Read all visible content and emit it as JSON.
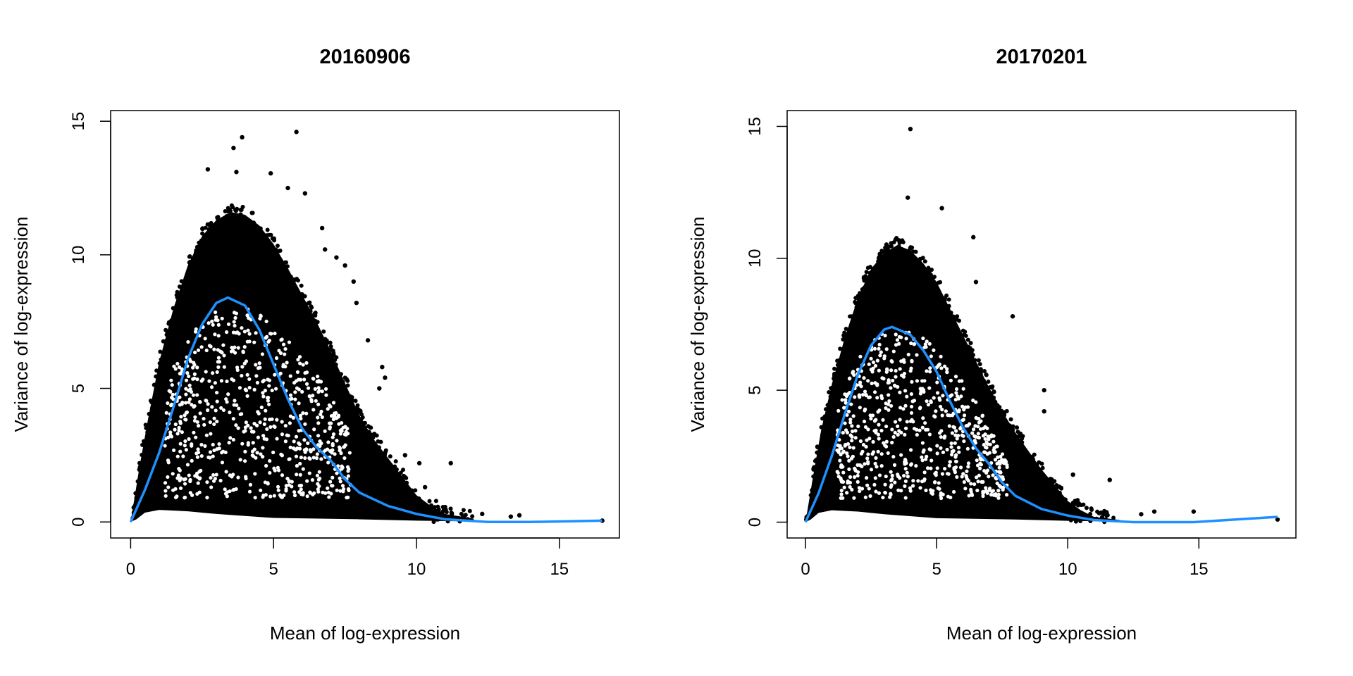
{
  "chart_data": [
    {
      "type": "scatter",
      "title": "20160906",
      "xlabel": "Mean of log-expression",
      "ylabel": "Variance of log-expression",
      "xlim": [
        -0.7,
        17.1
      ],
      "ylim": [
        -0.6,
        15.4
      ],
      "xticks": [
        0,
        5,
        10,
        15
      ],
      "yticks": [
        0,
        5,
        10,
        15
      ],
      "grid": false,
      "point_color": "#000000",
      "trend_color": "#1e90ff",
      "trend": [
        [
          0,
          0
        ],
        [
          0.5,
          1.2
        ],
        [
          1,
          2.6
        ],
        [
          1.5,
          4.3
        ],
        [
          2,
          6.1
        ],
        [
          2.5,
          7.4
        ],
        [
          3,
          8.2
        ],
        [
          3.4,
          8.4
        ],
        [
          4,
          8.1
        ],
        [
          4.5,
          7.2
        ],
        [
          5,
          5.9
        ],
        [
          5.5,
          4.6
        ],
        [
          6,
          3.5
        ],
        [
          6.5,
          2.8
        ],
        [
          7,
          2.3
        ],
        [
          7.5,
          1.6
        ],
        [
          8,
          1.1
        ],
        [
          9,
          0.6
        ],
        [
          10,
          0.3
        ],
        [
          11,
          0.1
        ],
        [
          12.5,
          0
        ],
        [
          14,
          0
        ],
        [
          16.5,
          0.05
        ]
      ],
      "dense_upper": [
        [
          0,
          0
        ],
        [
          0.3,
          2
        ],
        [
          0.6,
          3.8
        ],
        [
          1,
          6
        ],
        [
          1.5,
          8
        ],
        [
          2,
          9.6
        ],
        [
          2.5,
          10.7
        ],
        [
          3,
          11.3
        ],
        [
          3.5,
          11.6
        ],
        [
          4,
          11.5
        ],
        [
          4.5,
          11.1
        ],
        [
          5,
          10.4
        ],
        [
          5.5,
          9.5
        ],
        [
          6,
          8.5
        ],
        [
          6.5,
          7.5
        ],
        [
          7,
          6.4
        ],
        [
          7.5,
          5.2
        ],
        [
          8,
          4
        ],
        [
          8.5,
          3.1
        ],
        [
          9,
          2.4
        ],
        [
          9.5,
          1.7
        ],
        [
          10,
          1
        ],
        [
          10.5,
          0.6
        ],
        [
          11,
          0.3
        ],
        [
          12,
          0.12
        ]
      ],
      "dense_lower": [
        [
          12,
          0.02
        ],
        [
          10,
          0.05
        ],
        [
          8,
          0.1
        ],
        [
          5,
          0.15
        ],
        [
          3,
          0.3
        ],
        [
          2,
          0.4
        ],
        [
          1,
          0.45
        ],
        [
          0.5,
          0.35
        ],
        [
          0.2,
          0.1
        ]
      ],
      "outliers": [
        [
          5.8,
          14.6
        ],
        [
          3.9,
          14.4
        ],
        [
          3.6,
          14.0
        ],
        [
          2.7,
          13.2
        ],
        [
          3.7,
          13.1
        ],
        [
          4.9,
          13.05
        ],
        [
          5.5,
          12.5
        ],
        [
          6.1,
          12.3
        ],
        [
          6.7,
          11.0
        ],
        [
          6.8,
          10.2
        ],
        [
          7.2,
          9.9
        ],
        [
          7.5,
          9.6
        ],
        [
          7.8,
          9.0
        ],
        [
          7.9,
          8.2
        ],
        [
          8.3,
          6.8
        ],
        [
          8.8,
          5.8
        ],
        [
          8.9,
          5.4
        ],
        [
          8.7,
          5.0
        ],
        [
          9.6,
          2.5
        ],
        [
          10.1,
          2.2
        ],
        [
          11.2,
          2.2
        ],
        [
          10.3,
          1.3
        ],
        [
          12.3,
          0.3
        ],
        [
          13.3,
          0.2
        ],
        [
          13.6,
          0.25
        ],
        [
          16.5,
          0.05
        ]
      ]
    },
    {
      "type": "scatter",
      "title": "20170201",
      "xlabel": "Mean of log-expression",
      "ylabel": "Variance of log-expression",
      "xlim": [
        -0.7,
        18.7
      ],
      "ylim": [
        -0.6,
        15.6
      ],
      "xticks": [
        0,
        5,
        10,
        15
      ],
      "yticks": [
        0,
        5,
        10,
        15
      ],
      "grid": false,
      "point_color": "#000000",
      "trend_color": "#1e90ff",
      "trend": [
        [
          0,
          0
        ],
        [
          0.5,
          1.1
        ],
        [
          1,
          2.5
        ],
        [
          1.5,
          4.1
        ],
        [
          2,
          5.6
        ],
        [
          2.5,
          6.7
        ],
        [
          3,
          7.3
        ],
        [
          3.3,
          7.4
        ],
        [
          4,
          7.1
        ],
        [
          4.5,
          6.5
        ],
        [
          5,
          5.7
        ],
        [
          5.5,
          4.6
        ],
        [
          6,
          3.6
        ],
        [
          6.5,
          2.8
        ],
        [
          7,
          2.2
        ],
        [
          7.5,
          1.5
        ],
        [
          8,
          1.0
        ],
        [
          9,
          0.5
        ],
        [
          10,
          0.25
        ],
        [
          11,
          0.08
        ],
        [
          12.5,
          0
        ],
        [
          14.8,
          0
        ],
        [
          18,
          0.2
        ]
      ],
      "dense_upper": [
        [
          0,
          0
        ],
        [
          0.3,
          1.8
        ],
        [
          0.6,
          3.5
        ],
        [
          1,
          5.2
        ],
        [
          1.5,
          7
        ],
        [
          2,
          8.5
        ],
        [
          2.5,
          9.6
        ],
        [
          3,
          10.2
        ],
        [
          3.5,
          10.5
        ],
        [
          4,
          10.3
        ],
        [
          4.5,
          9.8
        ],
        [
          5,
          9.1
        ],
        [
          5.5,
          8.1
        ],
        [
          6,
          7.1
        ],
        [
          6.5,
          6.1
        ],
        [
          7,
          5.1
        ],
        [
          7.5,
          4.2
        ],
        [
          8,
          3.4
        ],
        [
          8.5,
          2.7
        ],
        [
          9,
          2
        ],
        [
          9.5,
          1.4
        ],
        [
          10,
          0.8
        ],
        [
          10.5,
          0.45
        ],
        [
          11,
          0.2
        ],
        [
          12,
          0.08
        ]
      ],
      "dense_lower": [
        [
          12,
          0.02
        ],
        [
          10,
          0.05
        ],
        [
          8,
          0.1
        ],
        [
          5,
          0.15
        ],
        [
          3,
          0.3
        ],
        [
          2,
          0.4
        ],
        [
          1,
          0.45
        ],
        [
          0.5,
          0.35
        ],
        [
          0.2,
          0.1
        ]
      ],
      "outliers": [
        [
          4.0,
          14.9
        ],
        [
          3.9,
          12.3
        ],
        [
          5.2,
          11.9
        ],
        [
          6.4,
          10.8
        ],
        [
          6.5,
          9.1
        ],
        [
          7.9,
          7.8
        ],
        [
          9.1,
          5.0
        ],
        [
          9.1,
          4.2
        ],
        [
          10.2,
          1.8
        ],
        [
          11.6,
          1.6
        ],
        [
          12.8,
          0.3
        ],
        [
          13.3,
          0.4
        ],
        [
          14.8,
          0.4
        ],
        [
          18,
          0.1
        ]
      ]
    }
  ]
}
